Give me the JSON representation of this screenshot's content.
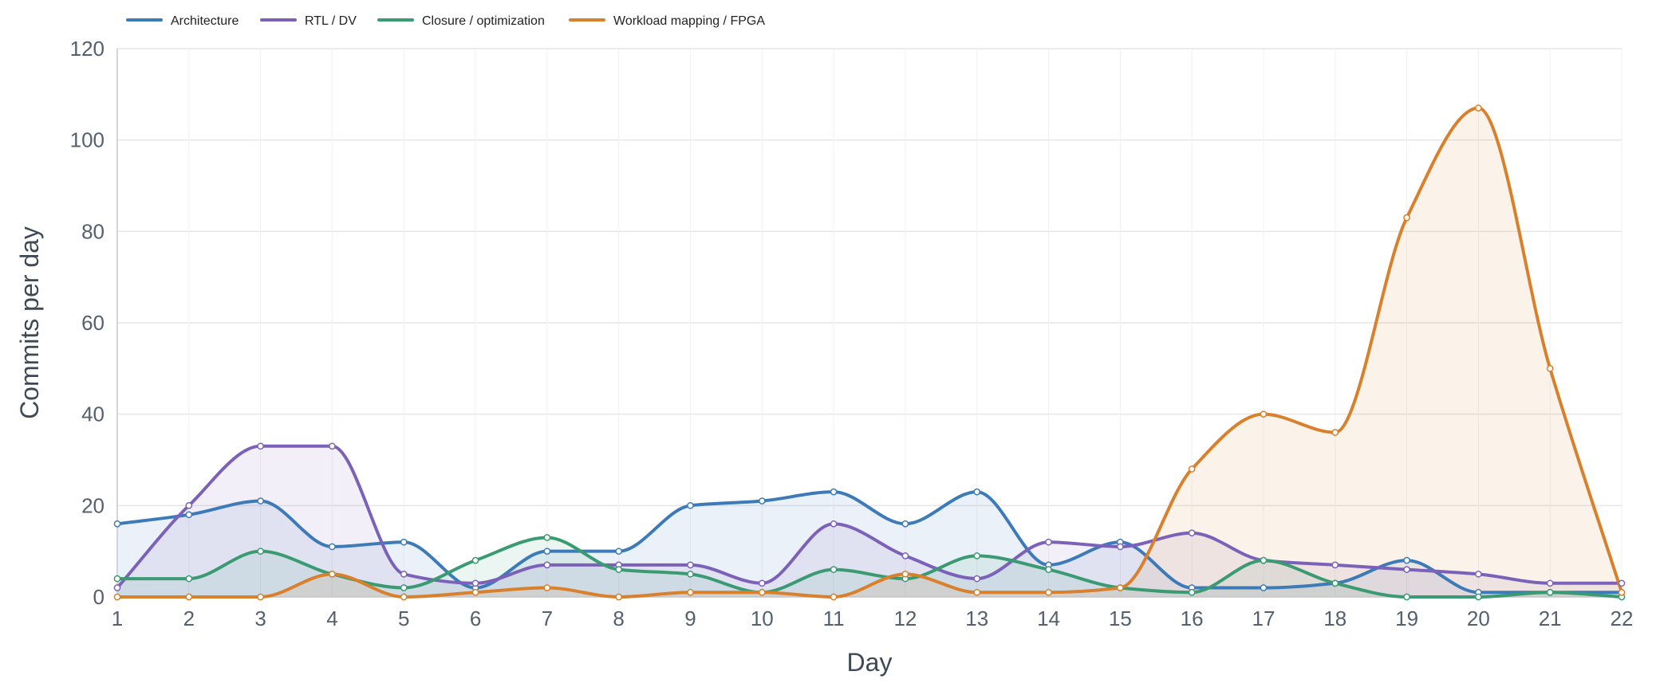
{
  "chart_data": {
    "type": "line",
    "xlabel": "Day",
    "ylabel": "Commits per day",
    "x": [
      1,
      2,
      3,
      4,
      5,
      6,
      7,
      8,
      9,
      10,
      11,
      12,
      13,
      14,
      15,
      16,
      17,
      18,
      19,
      20,
      21,
      22
    ],
    "ylim": [
      0,
      120
    ],
    "yticks": [
      0,
      20,
      40,
      60,
      80,
      100,
      120
    ],
    "grid": true,
    "legend_position": "top-left",
    "series": [
      {
        "name": "Architecture",
        "color": "#3d7ab8",
        "values": [
          16,
          18,
          21,
          11,
          12,
          2,
          10,
          10,
          20,
          21,
          23,
          16,
          23,
          7,
          12,
          2,
          2,
          3,
          8,
          1,
          1,
          1
        ]
      },
      {
        "name": "RTL / DV",
        "color": "#7c61b8",
        "values": [
          2,
          20,
          33,
          33,
          5,
          3,
          7,
          7,
          7,
          3,
          16,
          9,
          4,
          12,
          11,
          14,
          8,
          7,
          6,
          5,
          3,
          3
        ]
      },
      {
        "name": "Closure / optimization",
        "color": "#3a9a72",
        "values": [
          4,
          4,
          10,
          5,
          2,
          8,
          13,
          6,
          5,
          1,
          6,
          4,
          9,
          6,
          2,
          1,
          8,
          3,
          0,
          0,
          1,
          0
        ]
      },
      {
        "name": "Workload mapping / FPGA",
        "color": "#d8802b",
        "values": [
          0,
          0,
          0,
          5,
          0,
          1,
          2,
          0,
          1,
          1,
          0,
          5,
          1,
          1,
          2,
          28,
          40,
          36,
          83,
          107,
          50,
          1
        ]
      }
    ]
  }
}
